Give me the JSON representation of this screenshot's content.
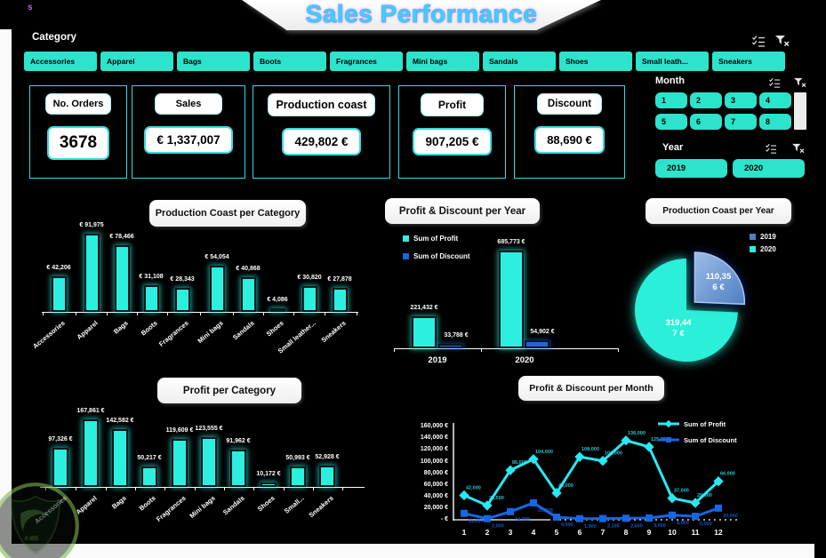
{
  "stray_text": "s",
  "title": "Sales Performance",
  "watermark_text": "il i6S",
  "category_slicer": {
    "label": "Category",
    "icons": [
      "multi-select-icon",
      "clear-filter-icon"
    ],
    "items": [
      "Accessories",
      "Apparel",
      "Bags",
      "Boots",
      "Fragrances",
      "Mini bags",
      "Sandals",
      "Shoes",
      "Small leath...",
      "Sneakers"
    ]
  },
  "kpis": [
    {
      "label": "No. Orders",
      "value": "3678"
    },
    {
      "label": "Sales",
      "value": "€ 1,337,007"
    },
    {
      "label": "Production coast",
      "value": "429,802 €"
    },
    {
      "label": "Profit",
      "value": "907,205 €"
    },
    {
      "label": "Discount",
      "value": "88,690 €"
    }
  ],
  "month_slicer": {
    "label": "Month",
    "icons": [
      "multi-select-icon",
      "clear-filter-icon"
    ],
    "items": [
      "1",
      "2",
      "3",
      "4",
      "5",
      "6",
      "7",
      "8"
    ]
  },
  "year_slicer": {
    "label": "Year",
    "icons": [
      "multi-select-icon",
      "clear-filter-icon"
    ],
    "items": [
      "2019",
      "2020"
    ]
  },
  "colors": {
    "teal": "#2BE4CB",
    "bar_cyan": "#2DEFE0",
    "blue": "#1766E3",
    "pie_2019": "#4E7FC2",
    "pie_2020": "#2BEFD9"
  },
  "chart_data": [
    {
      "type": "bar",
      "title": "Production Coast per Category",
      "categories": [
        "Accessories",
        "Apparel",
        "Bags",
        "Boots",
        "Fragrances",
        "Mini bags",
        "Sandals",
        "Shoes",
        "Small leather...",
        "Sneakers"
      ],
      "values": [
        42206,
        91975,
        78466,
        31108,
        28343,
        54054,
        40868,
        4086,
        30820,
        27878
      ],
      "data_labels": [
        "€ 42,206",
        "€ 91,975",
        "€ 78,466",
        "€ 31,108",
        "€ 28,343",
        "€ 54,054",
        "€ 40,868",
        "€ 4,086",
        "€ 30,820",
        "€ 27,878"
      ],
      "ylim": [
        0,
        100000
      ],
      "grid": false,
      "bar_color": "#2DEFE0"
    },
    {
      "type": "bar",
      "title": "Profit & Discount per Year",
      "categories": [
        "2019",
        "2020"
      ],
      "series": [
        {
          "name": "Sum of Profit",
          "color": "#2DEFE0",
          "values": [
            221432,
            685773
          ],
          "data_labels": [
            "221,432 €",
            "685,773 €"
          ]
        },
        {
          "name": "Sum of Discount",
          "color": "#1766E3",
          "values": [
            33788,
            54902
          ],
          "data_labels": [
            "33,788 €",
            "54,902 €"
          ]
        }
      ],
      "legend_position": "top-left",
      "ylim": [
        0,
        700000
      ],
      "grid": false
    },
    {
      "type": "pie",
      "title": "Production Coast per Year",
      "slices": [
        {
          "name": "2019",
          "value": 110356,
          "data_label_lines": [
            "110,35",
            "6 €"
          ],
          "color": "#4E7FC2",
          "exploded": true
        },
        {
          "name": "2020",
          "value": 319447,
          "data_label_lines": [
            "319,44",
            "7 €"
          ],
          "color": "#2BEFD9",
          "exploded": false
        }
      ],
      "legend_position": "top-right"
    },
    {
      "type": "bar",
      "title": "Profit per Category",
      "categories": [
        "Accessories",
        "Apparel",
        "Bags",
        "Boots",
        "Fragrances",
        "Mini bags",
        "Sandals",
        "Shoes",
        "Small...",
        "Sneakers"
      ],
      "values": [
        97326,
        167861,
        142582,
        50217,
        119609,
        123555,
        91962,
        10172,
        50993,
        52928
      ],
      "data_labels": [
        "97,326 €",
        "167,861 €",
        "142,582 €",
        "50,217 €",
        "119,609 €",
        "123,555 €",
        "91,962 €",
        "10,172 €",
        "50,993 €",
        "52,928 €"
      ],
      "ylim": [
        0,
        180000
      ],
      "grid": false,
      "bar_color": "#2DEFE0"
    },
    {
      "type": "line",
      "title": "Profit & Discount per Month",
      "x": [
        "1",
        "2",
        "3",
        "4",
        "5",
        "6",
        "7",
        "8",
        "9",
        "10",
        "11",
        "12"
      ],
      "yticks": [
        "- €",
        "20,000 €",
        "40,000 €",
        "60,000 €",
        "80,000 €",
        "100,000 €",
        "120,000 €",
        "140,000 €",
        "160,000 €"
      ],
      "ylim": [
        0,
        160000
      ],
      "series": [
        {
          "name": "Sum of Profit",
          "color": "#29E8F2",
          "marker": "diamond",
          "estimated": true,
          "values": [
            42000,
            24500,
            85000,
            104000,
            46000,
            108000,
            101000,
            136000,
            125000,
            37000,
            29000,
            66000
          ]
        },
        {
          "name": "Sum of Discount",
          "color": "#1766E3",
          "marker": "square",
          "estimated": true,
          "values": [
            11000,
            2000,
            14000,
            29000,
            4500,
            1900,
            2100,
            2600,
            3000,
            8000,
            6000,
            20000
          ]
        }
      ],
      "legend_position": "right",
      "grid": false
    }
  ]
}
